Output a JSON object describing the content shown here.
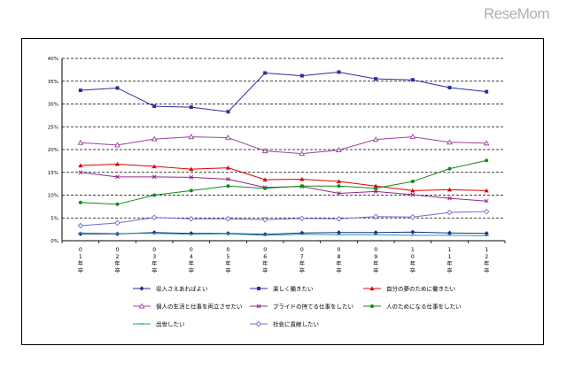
{
  "watermark": "ReseMom",
  "chart_data": {
    "type": "line",
    "categories": [
      "01年卒",
      "02年卒",
      "03年卒",
      "04年卒",
      "05年卒",
      "06年卒",
      "07年卒",
      "08年卒",
      "09年卒",
      "10年卒",
      "11年卒",
      "12年卒"
    ],
    "y_ticks": [
      "0%",
      "5%",
      "10%",
      "15%",
      "20%",
      "25%",
      "30%",
      "35%",
      "40%"
    ],
    "ylim": [
      0,
      40
    ],
    "grid": true,
    "legend_position": "bottom",
    "series": [
      {
        "name": "収入さえあればよい",
        "color": "#1f2d8a",
        "marker": "diamond",
        "values": [
          1.5,
          1.5,
          1.8,
          1.6,
          1.6,
          1.4,
          1.7,
          1.8,
          1.8,
          1.9,
          1.7,
          1.6
        ]
      },
      {
        "name": "楽しく働きたい",
        "color": "#2a2f9c",
        "marker": "square",
        "values": [
          33,
          33.5,
          29.5,
          29.3,
          28.3,
          36.8,
          36.2,
          37,
          35.5,
          35.3,
          33.6,
          32.7
        ]
      },
      {
        "name": "自分の夢のために働きたい",
        "color": "#e00000",
        "marker": "triangle",
        "values": [
          16.5,
          16.8,
          16.3,
          15.7,
          16,
          13.4,
          13.5,
          13,
          12,
          11,
          11.2,
          11
        ]
      },
      {
        "name": "個人の生活と仕事を両立させたい",
        "color": "#a040a0",
        "marker": "triangle-open",
        "values": [
          21.5,
          21,
          22.3,
          22.8,
          22.6,
          19.7,
          19.1,
          19.9,
          22.2,
          22.8,
          21.6,
          21.4
        ]
      },
      {
        "name": "プライドの持てる仕事をしたい",
        "color": "#8b2a8b",
        "marker": "cross",
        "values": [
          15,
          14,
          14,
          13.9,
          13.5,
          11.7,
          11.9,
          10.4,
          10.8,
          10.1,
          9.3,
          8.7
        ]
      },
      {
        "name": "人のためになる仕事をしたい",
        "color": "#138a13",
        "marker": "circle",
        "values": [
          8.4,
          8,
          10,
          11,
          12,
          11.5,
          12,
          12,
          11.5,
          13,
          15.8,
          17.6
        ]
      },
      {
        "name": "出世したい",
        "color": "#20a0a0",
        "marker": "dash",
        "values": [
          1.7,
          1.6,
          1.6,
          1.4,
          1.5,
          1.2,
          1.4,
          1.3,
          1.3,
          1.2,
          1.2,
          1.1
        ]
      },
      {
        "name": "社会に貢献したい",
        "color": "#6b6bd6",
        "marker": "diamond-open",
        "values": [
          3.3,
          3.9,
          5.1,
          4.8,
          4.8,
          4.6,
          4.9,
          4.8,
          5.3,
          5.2,
          6.2,
          6.4
        ]
      }
    ]
  }
}
